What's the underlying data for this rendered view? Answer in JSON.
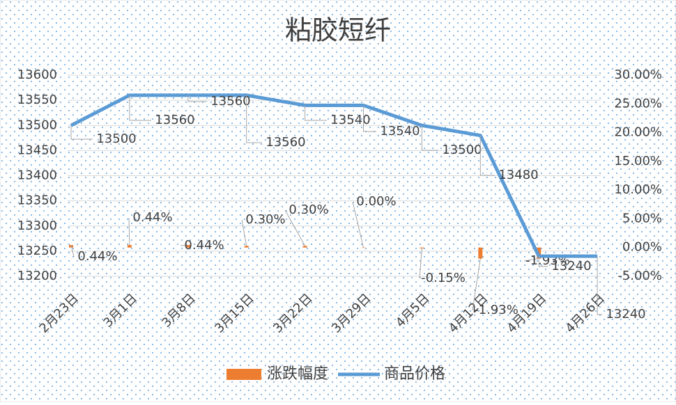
{
  "chart_data": {
    "type": "combo",
    "title": "粘胶短纤",
    "categories": [
      "2月23日",
      "3月1日",
      "3月8日",
      "3月15日",
      "3月22日",
      "3月29日",
      "4月5日",
      "4月12日",
      "4月19日",
      "4月26日"
    ],
    "series": [
      {
        "name": "涨跌幅度",
        "type": "bar",
        "axis": "y2",
        "color": "#ed7d31",
        "values": [
          0.44,
          0.44,
          0.44,
          0.3,
          0.3,
          0.0,
          -0.15,
          -1.93,
          -1.93,
          null
        ],
        "value_labels": [
          "0.44%",
          "0.44%",
          "0.44%",
          "0.30%",
          "0.30%",
          "0.00%",
          "-0.15%",
          "-1.93%",
          "-1.93%",
          null
        ]
      },
      {
        "name": "商品价格",
        "type": "line",
        "color": "#5b9bd5",
        "values": [
          13500,
          13560,
          13560,
          13560,
          13540,
          13540,
          13500,
          13480,
          13240,
          13240
        ]
      }
    ],
    "ylim": [
      13200,
      13600
    ],
    "yticks": [
      13200,
      13250,
      13300,
      13350,
      13400,
      13450,
      13500,
      13550,
      13600
    ],
    "y2lim": [
      -5,
      30
    ],
    "y2ticks": [
      {
        "value": -5,
        "label": "-5.00%"
      },
      {
        "value": 0,
        "label": "0.00%"
      },
      {
        "value": 5,
        "label": "5.00%"
      },
      {
        "value": 10,
        "label": "10.00%"
      },
      {
        "value": 15,
        "label": "15.00%"
      },
      {
        "value": 20,
        "label": "20.00%"
      },
      {
        "value": 25,
        "label": "25.00%"
      },
      {
        "value": 30,
        "label": "30.00%"
      }
    ],
    "grid": true
  }
}
